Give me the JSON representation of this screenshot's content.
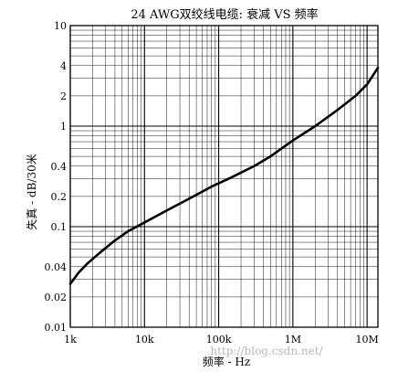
{
  "chart_data": {
    "type": "line",
    "title": "24 AWG双绞线电缆: 衰减 VS 频率",
    "xlabel": "频率 - Hz",
    "ylabel": "失真 - dB/30米",
    "xscale": "log",
    "yscale": "log",
    "xlim": [
      1000,
      14000000
    ],
    "ylim": [
      0.01,
      10
    ],
    "grid": true,
    "x_ticks": [
      {
        "value": 1000,
        "label": "1k"
      },
      {
        "value": 10000,
        "label": "10k"
      },
      {
        "value": 100000,
        "label": "100k"
      },
      {
        "value": 1000000,
        "label": "1M"
      },
      {
        "value": 10000000,
        "label": "10M"
      }
    ],
    "y_ticks": [
      {
        "value": 0.01,
        "label": "0.01"
      },
      {
        "value": 0.02,
        "label": "0.02"
      },
      {
        "value": 0.04,
        "label": "0.04"
      },
      {
        "value": 0.1,
        "label": "0.1"
      },
      {
        "value": 0.2,
        "label": "0.2"
      },
      {
        "value": 0.4,
        "label": "0.4"
      },
      {
        "value": 1,
        "label": "1"
      },
      {
        "value": 2,
        "label": "2"
      },
      {
        "value": 4,
        "label": "4"
      },
      {
        "value": 10,
        "label": "10"
      }
    ],
    "series": [
      {
        "x": [
          1000,
          1300,
          1700,
          2500,
          4000,
          6000,
          10000,
          20000,
          40000,
          80000,
          150000,
          300000,
          500000,
          1000000,
          2000000,
          4000000,
          7000000,
          10000000,
          14000000
        ],
        "y": [
          0.027,
          0.035,
          0.043,
          0.055,
          0.073,
          0.09,
          0.11,
          0.145,
          0.19,
          0.25,
          0.31,
          0.4,
          0.5,
          0.72,
          1.0,
          1.45,
          2.0,
          2.6,
          3.8
        ]
      }
    ]
  },
  "watermark": "http://blog.csdn.net/"
}
